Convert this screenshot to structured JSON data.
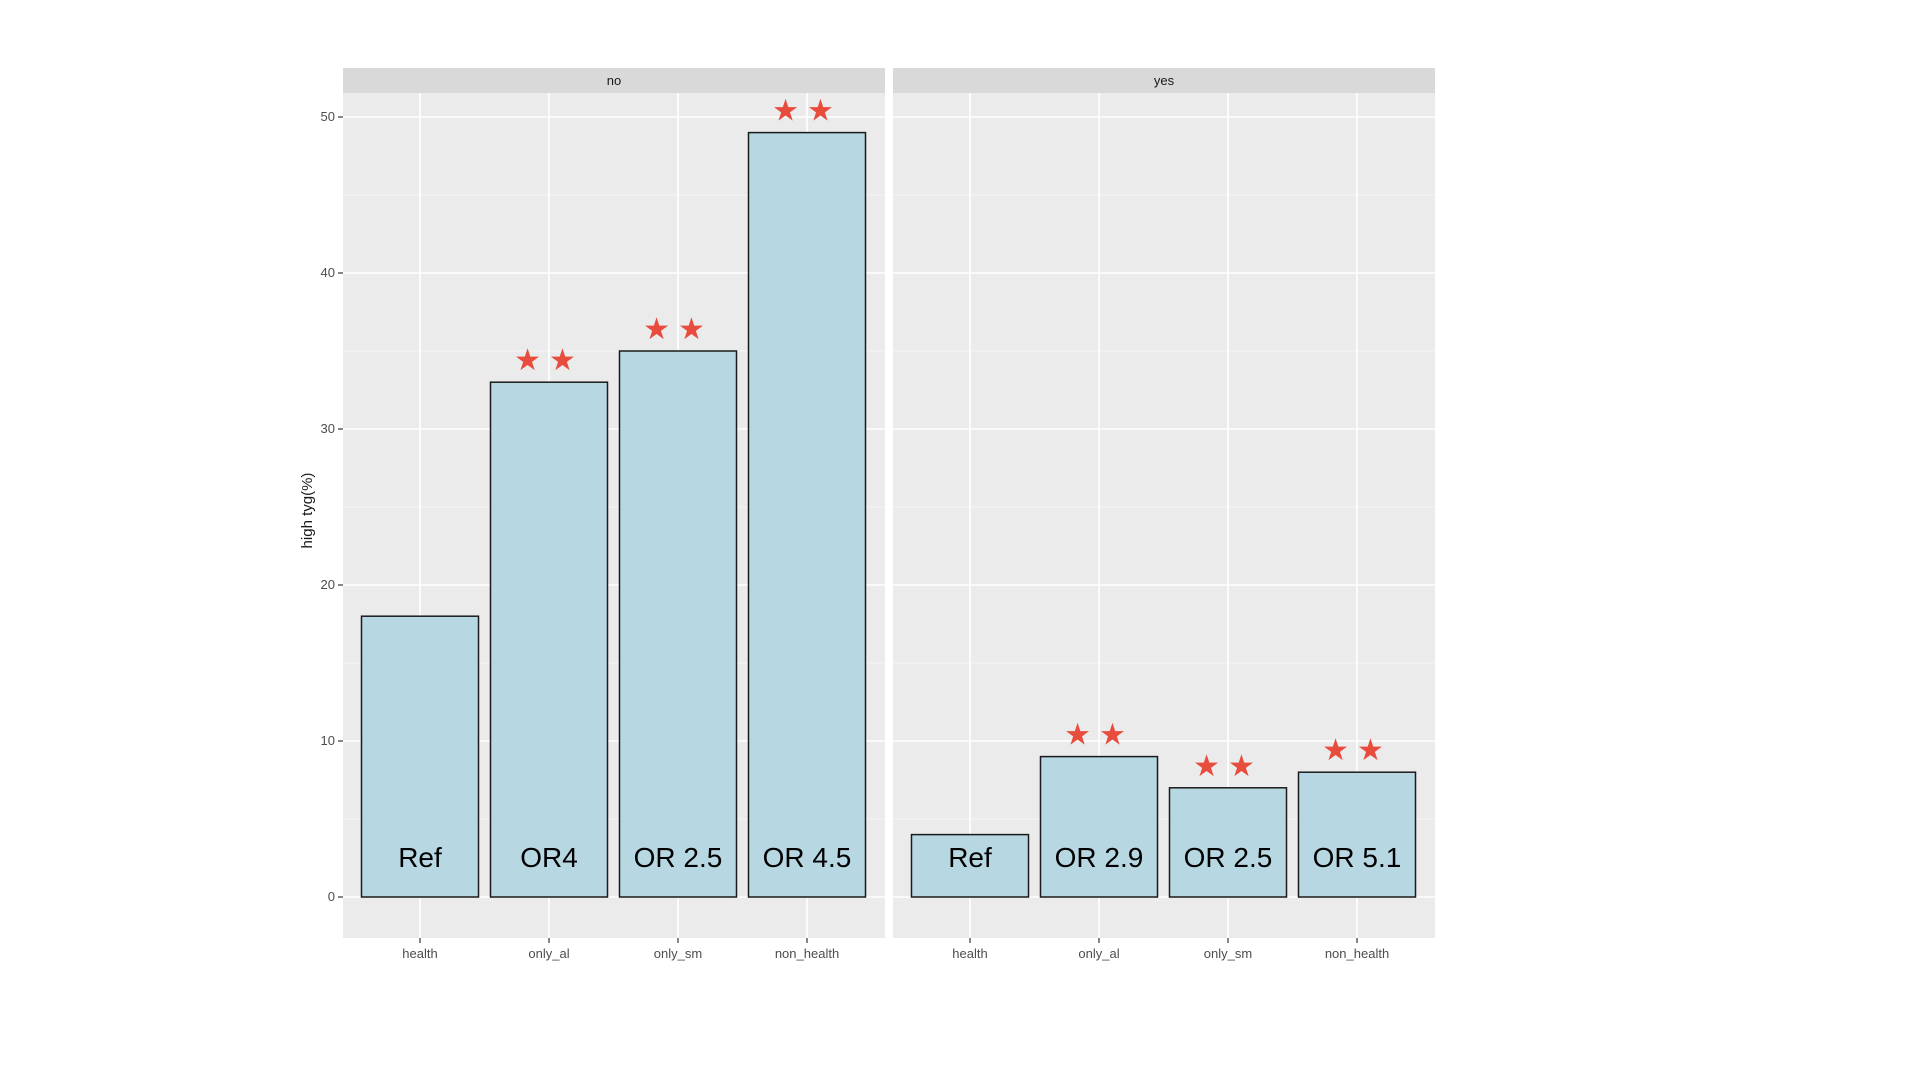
{
  "chart_data": {
    "type": "bar",
    "ylabel": "high tyg(%)",
    "ylim": [
      0,
      52
    ],
    "y_ticks": [
      0,
      10,
      20,
      30,
      40,
      50
    ],
    "grid": true,
    "categories": [
      "health",
      "only_al",
      "only_sm",
      "non_health"
    ],
    "annotation_symbol": "★★",
    "colors": {
      "panel_bg": "#EBEBEB",
      "strip_bg": "#D9D9D9",
      "grid": "#FFFFFF",
      "bar_fill": "#B7D8E3",
      "bar_stroke": "#1A1A1A",
      "star": "#E74C3C",
      "tick_text": "#4D4D4D"
    },
    "panels": [
      {
        "strip_label": "no",
        "values": [
          18,
          33,
          35,
          49
        ],
        "bar_labels": [
          "Ref",
          "OR4",
          "OR 2.5",
          "OR 4.5"
        ],
        "stars": [
          false,
          true,
          true,
          true
        ]
      },
      {
        "strip_label": "yes",
        "values": [
          4,
          9,
          7,
          8
        ],
        "bar_labels": [
          "Ref",
          "OR 2.9",
          "OR 2.5",
          "OR 5.1"
        ],
        "stars": [
          false,
          true,
          true,
          true
        ]
      }
    ]
  }
}
